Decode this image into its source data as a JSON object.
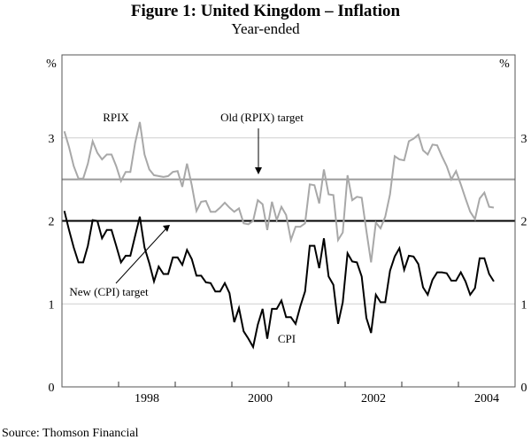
{
  "chart_data": {
    "type": "line",
    "title": "Figure 1: United Kingdom – Inflation",
    "subtitle": "Year-ended",
    "ylabel_left": "%",
    "ylabel_right": "%",
    "ylim": [
      0,
      4
    ],
    "yticks": [
      0,
      1,
      2,
      3
    ],
    "xlim": [
      "1997-01",
      "2004-12"
    ],
    "x_start": "1997-01",
    "x_frequency": "monthly",
    "xticks": [
      "1998",
      "2000",
      "2002",
      "2004"
    ],
    "grid": true,
    "series": [
      {
        "name": "RPIX",
        "color": "#a8a8a8",
        "values": [
          3.08,
          2.89,
          2.66,
          2.51,
          2.51,
          2.69,
          2.96,
          2.82,
          2.74,
          2.8,
          2.8,
          2.66,
          2.48,
          2.59,
          2.59,
          2.94,
          3.19,
          2.8,
          2.62,
          2.55,
          2.54,
          2.53,
          2.54,
          2.59,
          2.6,
          2.41,
          2.69,
          2.43,
          2.12,
          2.23,
          2.24,
          2.11,
          2.11,
          2.16,
          2.22,
          2.16,
          2.11,
          2.15,
          1.97,
          1.96,
          2.0,
          2.25,
          2.2,
          1.89,
          2.23,
          2.01,
          2.17,
          2.07,
          1.77,
          1.93,
          1.93,
          1.97,
          2.44,
          2.43,
          2.21,
          2.62,
          2.32,
          2.31,
          1.77,
          1.86,
          2.55,
          2.25,
          2.29,
          2.28,
          1.88,
          1.5,
          1.98,
          1.91,
          2.05,
          2.32,
          2.78,
          2.74,
          2.73,
          2.96,
          2.99,
          3.04,
          2.85,
          2.8,
          2.92,
          2.91,
          2.78,
          2.66,
          2.5,
          2.6,
          2.44,
          2.27,
          2.11,
          2.02,
          2.27,
          2.34,
          2.17,
          2.16
        ]
      },
      {
        "name": "CPI",
        "color": "#000000",
        "values": [
          2.12,
          1.89,
          1.68,
          1.5,
          1.5,
          1.7,
          2.01,
          2.0,
          1.79,
          1.89,
          1.89,
          1.7,
          1.5,
          1.58,
          1.58,
          1.82,
          2.05,
          1.68,
          1.49,
          1.27,
          1.45,
          1.36,
          1.36,
          1.56,
          1.56,
          1.47,
          1.65,
          1.54,
          1.34,
          1.34,
          1.26,
          1.25,
          1.15,
          1.15,
          1.25,
          1.13,
          0.78,
          0.95,
          0.67,
          0.58,
          0.48,
          0.75,
          0.94,
          0.58,
          0.94,
          0.94,
          1.04,
          0.84,
          0.84,
          0.76,
          0.97,
          1.15,
          1.7,
          1.7,
          1.43,
          1.79,
          1.33,
          1.23,
          0.76,
          1.02,
          1.61,
          1.51,
          1.5,
          1.33,
          0.83,
          0.65,
          1.11,
          1.02,
          1.02,
          1.4,
          1.57,
          1.67,
          1.41,
          1.58,
          1.57,
          1.48,
          1.2,
          1.11,
          1.29,
          1.38,
          1.38,
          1.37,
          1.28,
          1.28,
          1.38,
          1.27,
          1.11,
          1.19,
          1.55,
          1.55,
          1.36,
          1.27
        ]
      }
    ],
    "reference_lines": [
      {
        "name": "Old (RPIX) target",
        "value": 2.5,
        "color": "#9a9a9a"
      },
      {
        "name": "New (CPI) target",
        "value": 2.0,
        "color": "#000000"
      }
    ],
    "annotations": [
      "RPIX",
      "CPI",
      "Old (RPIX) target",
      "New (CPI) target"
    ]
  },
  "labels": {
    "rpix": "RPIX",
    "cpi": "CPI",
    "old_target": "Old (RPIX) target",
    "new_target": "New (CPI) target"
  },
  "source": "Source: Thomson Financial"
}
